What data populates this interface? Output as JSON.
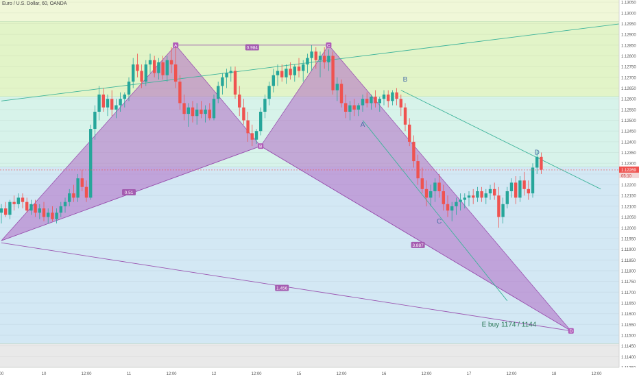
{
  "symbol": "Euro / U.S. Dollar, 60, OANDA",
  "colors": {
    "zone_top": "#f0f7d8",
    "zone_green": "#e2f4c8",
    "zone_mint": "#d7f3ea",
    "zone_blue": "#d3e8f4",
    "zone_gray": "#e9e9e9",
    "pattern_fill": "#b06ac4",
    "pattern_stroke": "#9a54b0",
    "up_candle": "#26a69a",
    "down_candle": "#ef5350",
    "trendline": "#3cb39a",
    "price_badge": "#ef5350"
  },
  "chart_data": {
    "type": "candlestick",
    "title": "Euro / U.S. Dollar, 60, OANDA",
    "ylim": [
      1.1135,
      1.1306
    ],
    "y_ticks": [
      "1.13050",
      "1.13000",
      "1.12950",
      "1.12900",
      "1.12850",
      "1.12800",
      "1.12750",
      "1.12700",
      "1.12650",
      "1.12600",
      "1.12550",
      "1.12500",
      "1.12450",
      "1.12400",
      "1.12350",
      "1.12300",
      "1.12250",
      "1.12200",
      "1.12150",
      "1.12100",
      "1.12050",
      "1.12000",
      "1.11950",
      "1.11900",
      "1.11850",
      "1.11800",
      "1.11750",
      "1.11700",
      "1.11650",
      "1.11600",
      "1.11550",
      "1.11500",
      "1.11450",
      "1.11400",
      "1.11350"
    ],
    "x_ticks": [
      "00",
      "10",
      "12:00",
      "11",
      "12:00",
      "12",
      "12:00",
      "15",
      "12:00",
      "16",
      "12:00",
      "17",
      "12:00",
      "18",
      "12:00"
    ],
    "x_tick_index": [
      0,
      10,
      20,
      30,
      40,
      50,
      60,
      70,
      80,
      90,
      100,
      110,
      120,
      130,
      140
    ],
    "last_price": "1.12269",
    "countdown": "05:10",
    "zones": [
      {
        "from": 1.1296,
        "to": 1.1306,
        "color": "zone_top"
      },
      {
        "from": 1.1261,
        "to": 1.1296,
        "color": "zone_green"
      },
      {
        "from": 1.12283,
        "to": 1.1261,
        "color": "zone_mint"
      },
      {
        "from": 1.1146,
        "to": 1.12283,
        "color": "zone_blue"
      },
      {
        "from": 1.1135,
        "to": 1.1146,
        "color": "zone_gray"
      }
    ],
    "harmonic_points": [
      {
        "label": "A",
        "i": 41,
        "p": 1.1285
      },
      {
        "label": "B",
        "i": 61,
        "p": 1.1238
      },
      {
        "label": "C",
        "i": 77,
        "p": 1.1285
      },
      {
        "label": "D",
        "i": 134,
        "p": 1.1152
      },
      {
        "label": "",
        "i": 0,
        "p": 1.1194
      }
    ],
    "ratios": [
      {
        "label": "0.984",
        "i": 59,
        "p": 1.1284
      },
      {
        "label": "0.51",
        "i": 30,
        "p": 1.12165
      },
      {
        "label": "3.887",
        "i": 98,
        "p": 1.1192
      },
      {
        "label": "1.456",
        "i": 66,
        "p": 1.1172
      }
    ],
    "abcd_labels": [
      {
        "label": "A",
        "i": 85,
        "p": 1.1247
      },
      {
        "label": "B",
        "i": 95,
        "p": 1.1268
      },
      {
        "label": "C",
        "i": 103,
        "p": 1.1202
      },
      {
        "label": "D",
        "i": 126,
        "p": 1.1234
      }
    ],
    "annotation": {
      "text": "E buy 1174 / 1144",
      "i": 113,
      "p": 1.1154
    },
    "trendlines": [
      {
        "i1": 0,
        "p1": 1.1259,
        "i2": 150,
        "p2": 1.1296
      },
      {
        "i1": 94,
        "p1": 1.1264,
        "i2": 141,
        "p2": 1.1218
      },
      {
        "i1": 85,
        "p1": 1.125,
        "i2": 119,
        "p2": 1.1166
      },
      {
        "i1": 0,
        "p1": 1.1193,
        "i2": 134,
        "p2": 1.1152
      }
    ],
    "candles": [
      [
        1.1207,
        1.1211,
        1.1202,
        1.1209
      ],
      [
        1.1209,
        1.1212,
        1.1205,
        1.1206
      ],
      [
        1.1206,
        1.1213,
        1.1204,
        1.1212
      ],
      [
        1.1212,
        1.1215,
        1.1208,
        1.1211
      ],
      [
        1.1211,
        1.1216,
        1.1209,
        1.1214
      ],
      [
        1.1214,
        1.1216,
        1.1209,
        1.1212
      ],
      [
        1.1212,
        1.1214,
        1.1207,
        1.1208
      ],
      [
        1.1208,
        1.1213,
        1.1206,
        1.1211
      ],
      [
        1.1211,
        1.1213,
        1.1205,
        1.1207
      ],
      [
        1.1207,
        1.1211,
        1.1204,
        1.1209
      ],
      [
        1.1209,
        1.1212,
        1.1203,
        1.1205
      ],
      [
        1.1205,
        1.1209,
        1.1202,
        1.1207
      ],
      [
        1.1207,
        1.121,
        1.1203,
        1.1204
      ],
      [
        1.1204,
        1.1209,
        1.1202,
        1.1207
      ],
      [
        1.1207,
        1.1212,
        1.1205,
        1.121
      ],
      [
        1.121,
        1.1214,
        1.1207,
        1.1212
      ],
      [
        1.1212,
        1.1218,
        1.121,
        1.1216
      ],
      [
        1.1216,
        1.122,
        1.1212,
        1.1214
      ],
      [
        1.1214,
        1.1225,
        1.1212,
        1.1223
      ],
      [
        1.1223,
        1.1227,
        1.1217,
        1.1219
      ],
      [
        1.1219,
        1.1222,
        1.1212,
        1.1214
      ],
      [
        1.1214,
        1.1248,
        1.1213,
        1.1246
      ],
      [
        1.1246,
        1.1257,
        1.1241,
        1.1254
      ],
      [
        1.1254,
        1.1266,
        1.125,
        1.1262
      ],
      [
        1.1262,
        1.1265,
        1.1254,
        1.1256
      ],
      [
        1.1256,
        1.1262,
        1.1252,
        1.126
      ],
      [
        1.126,
        1.1264,
        1.1252,
        1.1255
      ],
      [
        1.1255,
        1.126,
        1.1251,
        1.1257
      ],
      [
        1.1257,
        1.1263,
        1.1254,
        1.126
      ],
      [
        1.126,
        1.1263,
        1.1256,
        1.1262
      ],
      [
        1.1262,
        1.127,
        1.1259,
        1.1268
      ],
      [
        1.1268,
        1.1279,
        1.1265,
        1.1276
      ],
      [
        1.1276,
        1.1281,
        1.127,
        1.1273
      ],
      [
        1.1273,
        1.1276,
        1.1265,
        1.1268
      ],
      [
        1.1268,
        1.1278,
        1.1266,
        1.1276
      ],
      [
        1.1276,
        1.1281,
        1.1272,
        1.1278
      ],
      [
        1.1278,
        1.128,
        1.127,
        1.1272
      ],
      [
        1.1272,
        1.1279,
        1.1269,
        1.1277
      ],
      [
        1.1277,
        1.128,
        1.1269,
        1.1271
      ],
      [
        1.1271,
        1.128,
        1.1268,
        1.1278
      ],
      [
        1.1278,
        1.1284,
        1.1272,
        1.1276
      ],
      [
        1.1276,
        1.1285,
        1.1265,
        1.1268
      ],
      [
        1.1268,
        1.1271,
        1.1255,
        1.1258
      ],
      [
        1.1258,
        1.1262,
        1.125,
        1.1253
      ],
      [
        1.1253,
        1.1258,
        1.1247,
        1.1256
      ],
      [
        1.1256,
        1.1259,
        1.1249,
        1.1252
      ],
      [
        1.1252,
        1.1258,
        1.1248,
        1.1255
      ],
      [
        1.1255,
        1.1259,
        1.1251,
        1.1253
      ],
      [
        1.1253,
        1.1257,
        1.1249,
        1.1255
      ],
      [
        1.1255,
        1.1258,
        1.125,
        1.1251
      ],
      [
        1.1251,
        1.1262,
        1.125,
        1.126
      ],
      [
        1.126,
        1.1268,
        1.1258,
        1.1266
      ],
      [
        1.1266,
        1.1272,
        1.1262,
        1.127
      ],
      [
        1.127,
        1.1274,
        1.1265,
        1.1272
      ],
      [
        1.1272,
        1.1275,
        1.1268,
        1.1273
      ],
      [
        1.1273,
        1.1275,
        1.126,
        1.1262
      ],
      [
        1.1262,
        1.1266,
        1.1252,
        1.1256
      ],
      [
        1.1256,
        1.126,
        1.1248,
        1.125
      ],
      [
        1.125,
        1.1254,
        1.124,
        1.1244
      ],
      [
        1.1244,
        1.1248,
        1.1238,
        1.1241
      ],
      [
        1.1241,
        1.1246,
        1.1239,
        1.1245
      ],
      [
        1.1245,
        1.1256,
        1.1243,
        1.1254
      ],
      [
        1.1254,
        1.1262,
        1.1251,
        1.126
      ],
      [
        1.126,
        1.1268,
        1.1257,
        1.1266
      ],
      [
        1.1266,
        1.1274,
        1.1263,
        1.1271
      ],
      [
        1.1271,
        1.1276,
        1.1266,
        1.1273
      ],
      [
        1.1273,
        1.1276,
        1.1268,
        1.127
      ],
      [
        1.127,
        1.1276,
        1.1267,
        1.1274
      ],
      [
        1.1274,
        1.1277,
        1.1269,
        1.1271
      ],
      [
        1.1271,
        1.1276,
        1.1268,
        1.1275
      ],
      [
        1.1275,
        1.1279,
        1.127,
        1.1273
      ],
      [
        1.1273,
        1.1278,
        1.1268,
        1.1276
      ],
      [
        1.1276,
        1.1281,
        1.1272,
        1.1279
      ],
      [
        1.1279,
        1.1285,
        1.1273,
        1.1282
      ],
      [
        1.1282,
        1.1284,
        1.1274,
        1.1278
      ],
      [
        1.1278,
        1.1282,
        1.127,
        1.128
      ],
      [
        1.128,
        1.1284,
        1.1274,
        1.1277
      ],
      [
        1.1277,
        1.1283,
        1.1273,
        1.128
      ],
      [
        1.128,
        1.1282,
        1.1262,
        1.1264
      ],
      [
        1.1264,
        1.127,
        1.1259,
        1.1267
      ],
      [
        1.1267,
        1.1269,
        1.1256,
        1.1258
      ],
      [
        1.1258,
        1.1262,
        1.1251,
        1.1254
      ],
      [
        1.1254,
        1.1259,
        1.125,
        1.1257
      ],
      [
        1.1257,
        1.126,
        1.1252,
        1.1255
      ],
      [
        1.1255,
        1.1258,
        1.1252,
        1.1257
      ],
      [
        1.1257,
        1.1262,
        1.1254,
        1.126
      ],
      [
        1.126,
        1.1263,
        1.1256,
        1.1258
      ],
      [
        1.1258,
        1.1262,
        1.1255,
        1.1261
      ],
      [
        1.1261,
        1.1264,
        1.1256,
        1.1258
      ],
      [
        1.1258,
        1.1261,
        1.1254,
        1.126
      ],
      [
        1.126,
        1.1264,
        1.1257,
        1.1262
      ],
      [
        1.1262,
        1.1264,
        1.1256,
        1.1259
      ],
      [
        1.1259,
        1.1264,
        1.1257,
        1.1263
      ],
      [
        1.1263,
        1.1265,
        1.1257,
        1.126
      ],
      [
        1.126,
        1.1262,
        1.1252,
        1.1256
      ],
      [
        1.1256,
        1.1258,
        1.1245,
        1.1248
      ],
      [
        1.1248,
        1.1251,
        1.1238,
        1.124
      ],
      [
        1.124,
        1.1243,
        1.1228,
        1.1231
      ],
      [
        1.1231,
        1.1234,
        1.122,
        1.1223
      ],
      [
        1.1223,
        1.1228,
        1.1216,
        1.1218
      ],
      [
        1.1218,
        1.1222,
        1.121,
        1.1214
      ],
      [
        1.1214,
        1.122,
        1.121,
        1.1217
      ],
      [
        1.1217,
        1.1223,
        1.1212,
        1.1221
      ],
      [
        1.1221,
        1.1225,
        1.1214,
        1.1217
      ],
      [
        1.1217,
        1.122,
        1.1208,
        1.1211
      ],
      [
        1.1211,
        1.1215,
        1.1205,
        1.1208
      ],
      [
        1.1208,
        1.1212,
        1.1203,
        1.121
      ],
      [
        1.121,
        1.1214,
        1.1206,
        1.1212
      ],
      [
        1.1212,
        1.1216,
        1.1208,
        1.1213
      ],
      [
        1.1213,
        1.1216,
        1.1209,
        1.1214
      ],
      [
        1.1214,
        1.1217,
        1.121,
        1.1215
      ],
      [
        1.1215,
        1.1218,
        1.1211,
        1.1214
      ],
      [
        1.1214,
        1.1219,
        1.1212,
        1.1217
      ],
      [
        1.1217,
        1.1219,
        1.1212,
        1.1214
      ],
      [
        1.1214,
        1.1218,
        1.1211,
        1.1216
      ],
      [
        1.1216,
        1.122,
        1.1213,
        1.1218
      ],
      [
        1.1218,
        1.1221,
        1.1213,
        1.1215
      ],
      [
        1.1215,
        1.1219,
        1.12,
        1.1205
      ],
      [
        1.1205,
        1.1214,
        1.1202,
        1.1211
      ],
      [
        1.1211,
        1.1219,
        1.1209,
        1.1217
      ],
      [
        1.1217,
        1.1223,
        1.1214,
        1.1221
      ],
      [
        1.1221,
        1.1224,
        1.1211,
        1.1214
      ],
      [
        1.1214,
        1.1224,
        1.1212,
        1.1222
      ],
      [
        1.1222,
        1.1226,
        1.1215,
        1.1218
      ],
      [
        1.1218,
        1.1222,
        1.1213,
        1.1216
      ],
      [
        1.1216,
        1.123,
        1.1214,
        1.1228
      ],
      [
        1.1228,
        1.1236,
        1.1225,
        1.1233
      ],
      [
        1.1233,
        1.1235,
        1.1225,
        1.1227
      ]
    ]
  }
}
